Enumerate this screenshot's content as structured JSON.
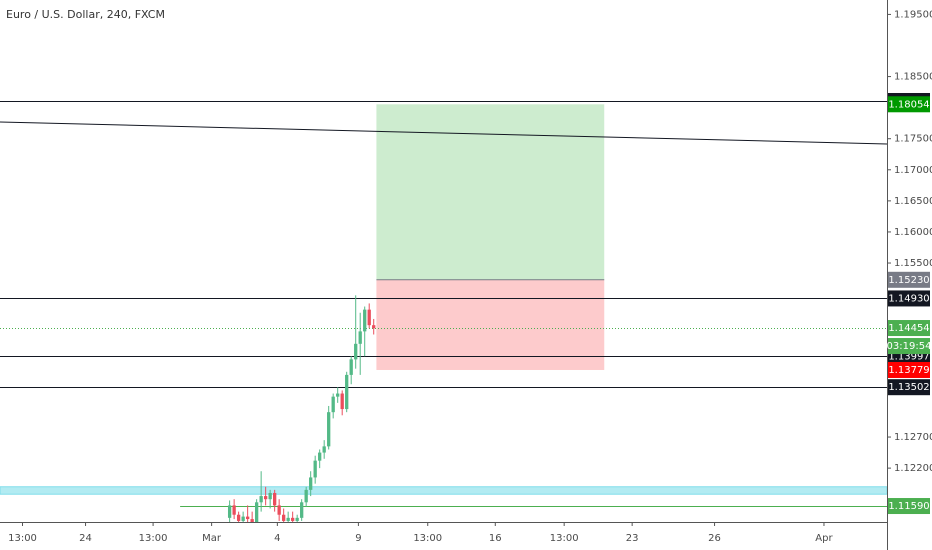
{
  "chart_data": {
    "type": "candlestick",
    "title": "Euro / U.S. Dollar, 240, FXCM",
    "x": [
      51,
      52,
      53,
      54,
      55,
      56,
      57,
      58,
      59,
      60,
      61,
      62,
      63,
      64,
      65,
      66,
      67,
      68,
      69,
      70,
      71,
      72,
      73,
      74,
      75,
      76,
      77,
      78,
      79,
      80,
      81,
      82,
      83
    ],
    "ohlc": [
      [
        1.114,
        1.1168,
        1.113,
        1.116
      ],
      [
        1.116,
        1.117,
        1.1138,
        1.1145
      ],
      [
        1.1145,
        1.115,
        1.1128,
        1.1135
      ],
      [
        1.1135,
        1.115,
        1.1125,
        1.1142
      ],
      [
        1.1142,
        1.116,
        1.113,
        1.1138
      ],
      [
        1.1138,
        1.115,
        1.1128,
        1.1133
      ],
      [
        1.1133,
        1.117,
        1.113,
        1.1165
      ],
      [
        1.1165,
        1.1215,
        1.115,
        1.1175
      ],
      [
        1.1175,
        1.119,
        1.116,
        1.117
      ],
      [
        1.117,
        1.1185,
        1.1155,
        1.118
      ],
      [
        1.118,
        1.1185,
        1.115,
        1.116
      ],
      [
        1.116,
        1.117,
        1.1135,
        1.1145
      ],
      [
        1.1145,
        1.1155,
        1.113,
        1.1135
      ],
      [
        1.1135,
        1.115,
        1.1132,
        1.114
      ],
      [
        1.114,
        1.115,
        1.113,
        1.1135
      ],
      [
        1.1135,
        1.1145,
        1.1128,
        1.114
      ],
      [
        1.114,
        1.117,
        1.1135,
        1.1165
      ],
      [
        1.1165,
        1.119,
        1.1158,
        1.1185
      ],
      [
        1.1185,
        1.1215,
        1.1175,
        1.1205
      ],
      [
        1.1205,
        1.124,
        1.1195,
        1.1232
      ],
      [
        1.1232,
        1.125,
        1.122,
        1.1245
      ],
      [
        1.1245,
        1.1265,
        1.1235,
        1.1255
      ],
      [
        1.1255,
        1.132,
        1.125,
        1.131
      ],
      [
        1.131,
        1.134,
        1.13,
        1.1335
      ],
      [
        1.1335,
        1.135,
        1.1325,
        1.134
      ],
      [
        1.134,
        1.1345,
        1.1305,
        1.1315
      ],
      [
        1.1315,
        1.1375,
        1.131,
        1.137
      ],
      [
        1.137,
        1.14,
        1.1355,
        1.1395
      ],
      [
        1.1395,
        1.1498,
        1.138,
        1.142
      ],
      [
        1.142,
        1.147,
        1.137,
        1.144
      ],
      [
        1.144,
        1.148,
        1.14,
        1.1475
      ],
      [
        1.1475,
        1.1485,
        1.1445,
        1.145
      ],
      [
        1.145,
        1.146,
        1.1435,
        1.1445
      ]
    ],
    "up_color": "#53b987",
    "down_color": "#eb4d5c",
    "xlim": [
      0,
      197
    ],
    "ylim": [
      1.11333,
      1.19732
    ],
    "xticks": [
      {
        "value": 5,
        "label": "13:00"
      },
      {
        "value": 19,
        "label": "24"
      },
      {
        "value": 34,
        "label": "13:00"
      },
      {
        "value": 47,
        "label": "Mar"
      },
      {
        "value": 61.6,
        "label": "4"
      },
      {
        "value": 79.6,
        "label": "9"
      },
      {
        "value": 95,
        "label": "13:00"
      },
      {
        "value": 110,
        "label": "16"
      },
      {
        "value": 125.3,
        "label": "13:00"
      },
      {
        "value": 140.4,
        "label": "23"
      },
      {
        "value": 158.7,
        "label": "26"
      },
      {
        "value": 183,
        "label": "Apr"
      }
    ],
    "yticks": [
      {
        "value": 1.195,
        "label": "1.19500"
      },
      {
        "value": 1.185,
        "label": "1.18500"
      },
      {
        "value": 1.175,
        "label": "1.17500"
      },
      {
        "value": 1.17,
        "label": "1.17000"
      },
      {
        "value": 1.165,
        "label": "1.16500"
      },
      {
        "value": 1.16,
        "label": "1.16000"
      },
      {
        "value": 1.155,
        "label": "1.15500"
      },
      {
        "value": 1.127,
        "label": "1.12700"
      },
      {
        "value": 1.122,
        "label": "1.12200"
      }
    ],
    "levels": [
      {
        "price": 1.18107,
        "color": "#131722",
        "start": 0
      },
      {
        "price": 1.1493,
        "price_label": "1.14930",
        "color": "#131722",
        "start": 0
      },
      {
        "price": 1.13997,
        "color": "#131722",
        "start": 0
      },
      {
        "price": 1.13502,
        "color": "#131722",
        "start": 0
      },
      {
        "price": 1.1159,
        "price_label": "1.11590",
        "color": "#4caf50",
        "start": 40
      },
      {
        "price": 1.14454,
        "color": "#4caf50",
        "start": 0,
        "dotted": true
      }
    ],
    "countdown": "03:19:54",
    "trendline": {
      "x": [
        0,
        197
      ],
      "y": [
        1.17769,
        1.17415
      ],
      "color": "#131722"
    },
    "zone": {
      "low": 1.1178,
      "high": 1.119,
      "color": "#b2ebf2",
      "border": "#80deea"
    },
    "position": {
      "x": [
        83.6,
        134.2
      ],
      "entry": 1.1523,
      "entry_label": "1.15230",
      "target": 1.18054,
      "stop": 1.13779,
      "target_color": "#009900",
      "entry_color": "#787b86",
      "stop_color": "#ff0000",
      "profit_fill": "#cdeccf",
      "loss_fill": "#fdcbcc"
    }
  }
}
